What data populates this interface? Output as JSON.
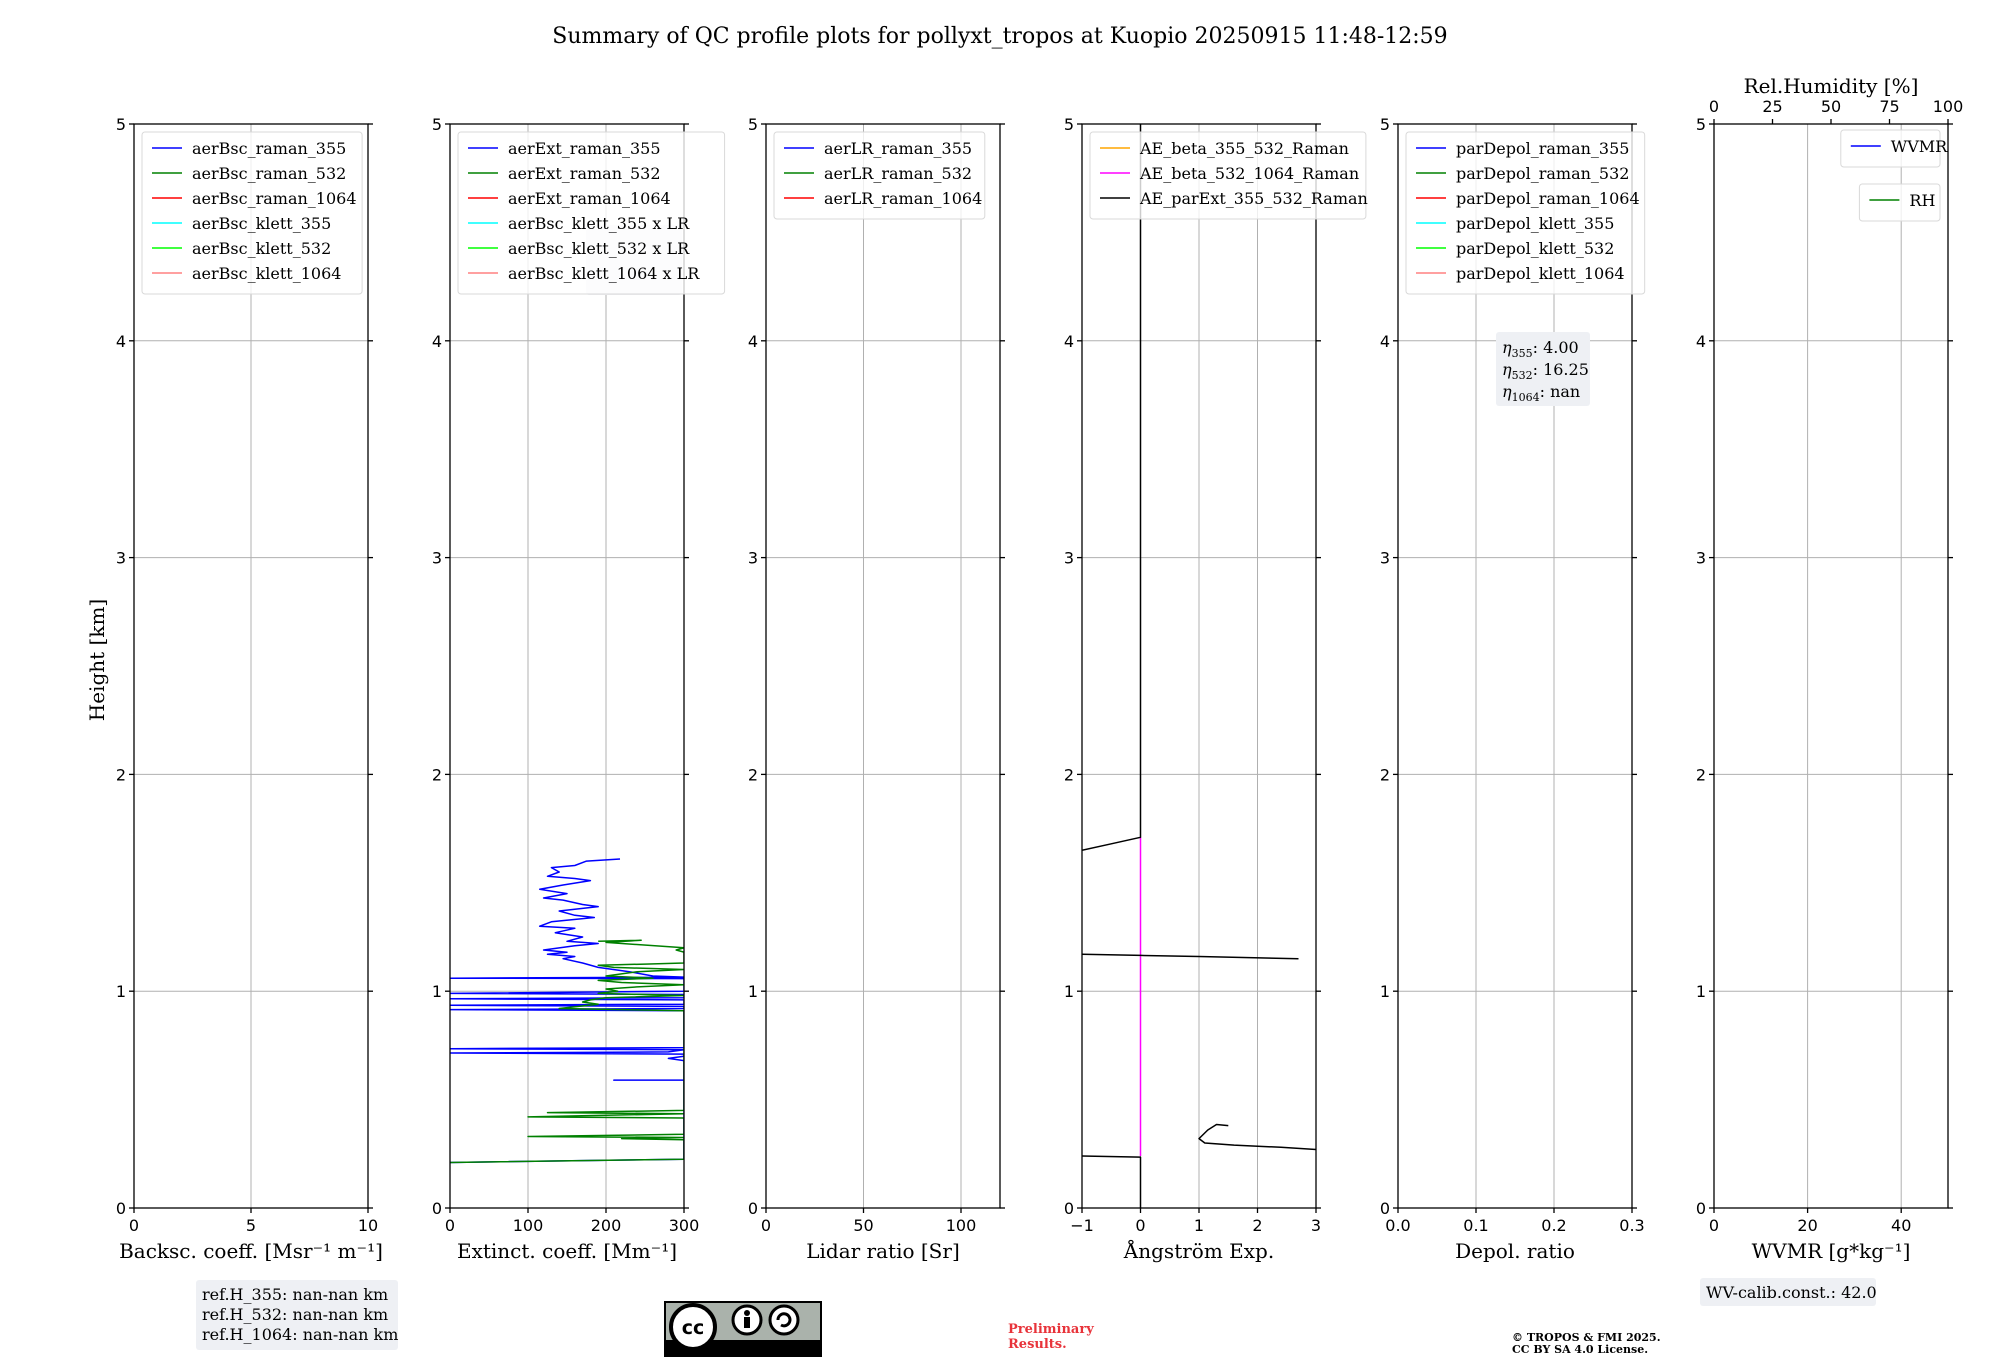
{
  "title": "Summary of QC profile plots for pollyxt_tropos at Kuopio 20250915 11:48-12:59",
  "ylabel": "Height [km]",
  "ylim": [
    0,
    5
  ],
  "yticks": [
    "0",
    "1",
    "2",
    "3",
    "4",
    "5"
  ],
  "panels": [
    {
      "id": "bsc",
      "type": "line",
      "xlabel_html": "Backsc. coeff. [Msr⁻¹ m⁻¹]",
      "xlim": [
        0,
        10
      ],
      "xticks": [
        0,
        5,
        10
      ],
      "legend": [
        {
          "label": "aerBsc_raman_355",
          "color": "#0000ff"
        },
        {
          "label": "aerBsc_raman_532",
          "color": "#008000"
        },
        {
          "label": "aerBsc_raman_1064",
          "color": "#ff0000"
        },
        {
          "label": "aerBsc_klett_355",
          "color": "#00ffff"
        },
        {
          "label": "aerBsc_klett_532",
          "color": "#00ff00"
        },
        {
          "label": "aerBsc_klett_1064",
          "color": "#ff8080"
        }
      ],
      "series": []
    },
    {
      "id": "ext",
      "type": "line",
      "xlabel_html": "Extinct. coeff. [Mm⁻¹]",
      "xlim": [
        0,
        300
      ],
      "xticks": [
        0,
        100,
        200,
        300
      ],
      "legend": [
        {
          "label": "aerExt_raman_355",
          "color": "#0000ff"
        },
        {
          "label": "aerExt_raman_532",
          "color": "#008000"
        },
        {
          "label": "aerExt_raman_1064",
          "color": "#ff0000"
        },
        {
          "label": "aerBsc_klett_355 x LR",
          "color": "#00ffff"
        },
        {
          "label": "aerBsc_klett_532 x LR",
          "color": "#00ff00"
        },
        {
          "label": "aerBsc_klett_1064 x LR",
          "color": "#ff8080"
        }
      ],
      "series": [
        {
          "color": "#0000ff",
          "points": [
            [
              218,
              1.61
            ],
            [
              175,
              1.6
            ],
            [
              160,
              1.58
            ],
            [
              130,
              1.57
            ],
            [
              140,
              1.55
            ],
            [
              125,
              1.53
            ],
            [
              160,
              1.52
            ],
            [
              180,
              1.51
            ],
            [
              145,
              1.49
            ],
            [
              115,
              1.47
            ],
            [
              150,
              1.45
            ],
            [
              120,
              1.43
            ],
            [
              145,
              1.42
            ],
            [
              170,
              1.4
            ],
            [
              190,
              1.39
            ],
            [
              140,
              1.37
            ],
            [
              160,
              1.35
            ],
            [
              185,
              1.34
            ],
            [
              130,
              1.32
            ],
            [
              115,
              1.3
            ],
            [
              160,
              1.29
            ],
            [
              135,
              1.27
            ],
            [
              170,
              1.25
            ],
            [
              150,
              1.23
            ],
            [
              190,
              1.22
            ],
            [
              160,
              1.21
            ],
            [
              120,
              1.19
            ],
            [
              150,
              1.18
            ],
            [
              125,
              1.17
            ],
            [
              160,
              1.16
            ],
            [
              145,
              1.15
            ],
            [
              170,
              1.13
            ],
            [
              190,
              1.11
            ],
            [
              230,
              1.09
            ],
            [
              260,
              1.07
            ],
            [
              300,
              1.065
            ],
            [
              0,
              1.06
            ],
            [
              300,
              1.058
            ],
            [
              300,
              1.0
            ],
            [
              0,
              0.99
            ],
            [
              300,
              0.985
            ],
            [
              300,
              0.97
            ],
            [
              0,
              0.965
            ],
            [
              300,
              0.96
            ],
            [
              300,
              0.94
            ],
            [
              0,
              0.935
            ],
            [
              300,
              0.93
            ],
            [
              300,
              0.92
            ],
            [
              0,
              0.915
            ],
            [
              300,
              0.91
            ],
            [
              300,
              0.74
            ],
            [
              0,
              0.735
            ],
            [
              300,
              0.73
            ],
            [
              280,
              0.72
            ],
            [
              0,
              0.715
            ],
            [
              300,
              0.71
            ],
            [
              300,
              0.7
            ],
            [
              280,
              0.69
            ],
            [
              300,
              0.68
            ],
            [
              300,
              0.59
            ],
            [
              210,
              0.59
            ],
            [
              300,
              0.59
            ],
            [
              300,
              0.225
            ],
            [
              0,
              0.21
            ]
          ]
        },
        {
          "color": "#008000",
          "points": [
            [
              190,
              1.23
            ],
            [
              245,
              1.235
            ],
            [
              200,
              1.225
            ],
            [
              300,
              1.2
            ],
            [
              290,
              1.19
            ],
            [
              300,
              1.18
            ],
            [
              300,
              1.13
            ],
            [
              250,
              1.125
            ],
            [
              190,
              1.12
            ],
            [
              210,
              1.11
            ],
            [
              300,
              1.1
            ],
            [
              240,
              1.09
            ],
            [
              200,
              1.07
            ],
            [
              260,
              1.06
            ],
            [
              190,
              1.05
            ],
            [
              220,
              1.04
            ],
            [
              300,
              1.03
            ],
            [
              240,
              1.02
            ],
            [
              200,
              1.01
            ],
            [
              215,
              1.0
            ],
            [
              190,
              0.99
            ],
            [
              300,
              0.98
            ],
            [
              200,
              0.97
            ],
            [
              180,
              0.96
            ],
            [
              170,
              0.95
            ],
            [
              190,
              0.94
            ],
            [
              140,
              0.92
            ],
            [
              300,
              0.91
            ],
            [
              300,
              0.45
            ],
            [
              125,
              0.44
            ],
            [
              300,
              0.435
            ],
            [
              100,
              0.42
            ],
            [
              300,
              0.415
            ],
            [
              300,
              0.34
            ],
            [
              100,
              0.33
            ],
            [
              300,
              0.325
            ],
            [
              220,
              0.32
            ],
            [
              300,
              0.315
            ],
            [
              300,
              0.225
            ],
            [
              0,
              0.21
            ]
          ]
        }
      ],
      "ghost_box": true
    },
    {
      "id": "lr",
      "type": "line",
      "xlabel_html": "Lidar ratio [Sr]",
      "xlim": [
        0,
        120
      ],
      "xticks": [
        0,
        50,
        100
      ],
      "legend": [
        {
          "label": "aerLR_raman_355",
          "color": "#0000ff"
        },
        {
          "label": "aerLR_raman_532",
          "color": "#008000"
        },
        {
          "label": "aerLR_raman_1064",
          "color": "#ff0000"
        }
      ],
      "series": []
    },
    {
      "id": "ae",
      "type": "line",
      "xlabel_html": "Ångström Exp.",
      "xlim": [
        -1,
        3
      ],
      "xticks": [
        -1,
        0,
        1,
        2,
        3
      ],
      "xticklabels": [
        "−1",
        "0",
        "1",
        "2",
        "3"
      ],
      "legend": [
        {
          "label": "AE_beta_355_532_Raman",
          "color": "#ffa500"
        },
        {
          "label": "AE_beta_532_1064_Raman",
          "color": "#ff00ff"
        },
        {
          "label": "AE_parExt_355_532_Raman",
          "color": "#000000"
        }
      ],
      "series": [
        {
          "color": "#ff00ff",
          "points": [
            [
              0,
              1.71
            ],
            [
              0,
              0.24
            ]
          ]
        },
        {
          "color": "#000000",
          "points": [
            [
              0,
              5
            ],
            [
              0,
              1.71
            ],
            [
              -0.5,
              1.68
            ],
            [
              -1,
              1.65
            ]
          ]
        },
        {
          "color": "#000000",
          "points": [
            [
              -1,
              1.17
            ],
            [
              0,
              1.165
            ],
            [
              1,
              1.16
            ],
            [
              2.7,
              1.15
            ]
          ]
        },
        {
          "color": "#000000",
          "points": [
            [
              1.5,
              0.38
            ],
            [
              1.3,
              0.385
            ],
            [
              1.15,
              0.36
            ],
            [
              1.0,
              0.32
            ],
            [
              1.1,
              0.3
            ],
            [
              1.6,
              0.29
            ],
            [
              2.4,
              0.28
            ],
            [
              3,
              0.27
            ]
          ]
        },
        {
          "color": "#000000",
          "points": [
            [
              -1,
              0.24
            ],
            [
              0,
              0.235
            ],
            [
              0,
              0
            ]
          ]
        }
      ]
    },
    {
      "id": "depol",
      "type": "line",
      "xlabel_html": "Depol. ratio",
      "xlim": [
        0,
        0.3
      ],
      "xticks": [
        0,
        0.1,
        0.2,
        0.3
      ],
      "xticklabels": [
        "0.0",
        "0.1",
        "0.2",
        "0.3"
      ],
      "legend": [
        {
          "label": "parDepol_raman_355",
          "color": "#0000ff"
        },
        {
          "label": "parDepol_raman_532",
          "color": "#008000"
        },
        {
          "label": "parDepol_raman_1064",
          "color": "#ff0000"
        },
        {
          "label": "parDepol_klett_355",
          "color": "#00ffff"
        },
        {
          "label": "parDepol_klett_532",
          "color": "#00ff00"
        },
        {
          "label": "parDepol_klett_1064",
          "color": "#ff8080"
        }
      ],
      "series": [],
      "eta": [
        {
          "sub": "355",
          "value": ": 4.00"
        },
        {
          "sub": "532",
          "value": ": 16.25"
        },
        {
          "sub": "1064",
          "value": ": nan"
        }
      ]
    },
    {
      "id": "wv",
      "type": "line",
      "xlabel_html": "WVMR [g*kg⁻¹]",
      "xlim": [
        0,
        50
      ],
      "xticks": [
        0,
        20,
        40
      ],
      "top_label": "Rel.Humidity [%]",
      "top_xlim": [
        0,
        100
      ],
      "top_xticks": [
        0,
        25,
        50,
        75,
        100
      ],
      "legend": [
        {
          "label": "WVMR",
          "color": "#0000ff"
        }
      ],
      "legend2": [
        {
          "label": "RH",
          "color": "#008000"
        }
      ],
      "series": []
    }
  ],
  "footer": {
    "refh": [
      "ref.H_355: nan-nan km",
      "ref.H_532: nan-nan km",
      "ref.H_1064: nan-nan km"
    ],
    "wv_calib": "WV-calib.const.: 42.0",
    "license_badge": {
      "cc": "cc",
      "by": "BY",
      "sa": "SA"
    },
    "preliminary": [
      "Preliminary",
      "Results."
    ],
    "copyright": [
      "© TROPOS & FMI 2025.",
      "CC BY SA 4.0 License."
    ]
  }
}
